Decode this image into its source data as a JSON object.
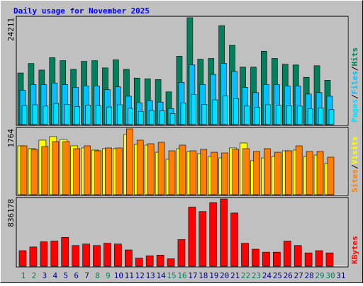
{
  "title": "Daily usage for November 2025",
  "days": [
    1,
    2,
    3,
    4,
    5,
    6,
    7,
    8,
    9,
    10,
    11,
    12,
    13,
    14,
    15,
    16,
    17,
    18,
    19,
    20,
    21,
    22,
    23,
    24,
    25,
    26,
    27,
    28,
    29,
    30,
    31
  ],
  "day_colors": [
    "#00805c",
    "#00805c",
    "#000080",
    "#000080",
    "#000080",
    "#000080",
    "#000080",
    "#00805c",
    "#00805c",
    "#000080",
    "#000080",
    "#000080",
    "#000080",
    "#000080",
    "#00805c",
    "#00805c",
    "#000080",
    "#000080",
    "#000080",
    "#000080",
    "#000080",
    "#00805c",
    "#00805c",
    "#000080",
    "#000080",
    "#000080",
    "#000080",
    "#000080",
    "#00805c",
    "#00805c",
    "#000080"
  ],
  "legend_separator": "/",
  "chart_data": [
    {
      "type": "bar",
      "ylim": [
        0,
        24211
      ],
      "yticks": [
        24211
      ],
      "series": [
        {
          "name": "Hits",
          "color": "#00805c",
          "values": [
            11694,
            13835,
            12353,
            15152,
            14494,
            12517,
            14329,
            14494,
            12847,
            14658,
            12517,
            10541,
            10376,
            10200,
            7412,
            15482,
            24211,
            14823,
            14988,
            22399,
            17952,
            13011,
            13011,
            16635,
            14988,
            13670,
            13505,
            10706,
            13341,
            10047,
            null
          ]
        },
        {
          "name": "Files",
          "color": "#00c0ff",
          "values": [
            7741,
            9059,
            9059,
            9388,
            9059,
            8400,
            8729,
            8729,
            7906,
            8564,
            6423,
            4941,
            5435,
            5106,
            3623,
            9553,
            13505,
            9059,
            11364,
            13835,
            12023,
            8400,
            7247,
            9059,
            9059,
            8729,
            8729,
            6917,
            7247,
            6423,
            null
          ]
        },
        {
          "name": "Pages",
          "color": "#00e0ff",
          "values": [
            4300,
            4500,
            4200,
            4800,
            4600,
            4100,
            4400,
            4300,
            4000,
            4500,
            3700,
            3000,
            3200,
            3100,
            2500,
            4900,
            6800,
            4600,
            5600,
            6500,
            5900,
            4200,
            3900,
            4500,
            4400,
            4300,
            4200,
            3600,
            3800,
            3400,
            null
          ]
        }
      ]
    },
    {
      "type": "bar",
      "ylim": [
        0,
        1764
      ],
      "yticks": [
        1764
      ],
      "series": [
        {
          "name": "Visits",
          "color": "#ffff00",
          "values": [
            1309,
            1233,
            1461,
            1556,
            1480,
            1309,
            1252,
            1195,
            1233,
            1233,
            1612,
            1347,
            1328,
            1138,
            949,
            1233,
            1157,
            1100,
            1024,
            986,
            1252,
            1385,
            911,
            986,
            1024,
            1176,
            1195,
            1024,
            1062,
            835,
            null
          ]
        },
        {
          "name": "Sites",
          "color": "#ff8000",
          "values": [
            1309,
            1214,
            1290,
            1423,
            1423,
            1233,
            1309,
            1176,
            1252,
            1252,
            1764,
            1461,
            1366,
            1404,
            1176,
            1328,
            1176,
            1214,
            1138,
            1119,
            1214,
            1233,
            1157,
            1233,
            1138,
            1176,
            1309,
            1157,
            1157,
            1005,
            null
          ]
        }
      ]
    },
    {
      "type": "bar",
      "ylim": [
        0,
        836178
      ],
      "yticks": [
        836178
      ],
      "series": [
        {
          "name": "KBytes",
          "color": "#ff0000",
          "values": [
            192969,
            238914,
            303237,
            312426,
            358371,
            257292,
            275670,
            257292,
            284859,
            275670,
            202158,
            101079,
            128646,
            137835,
            91890,
            330804,
            735120,
            679986,
            790254,
            836178,
            661608,
            284859,
            211347,
            174591,
            174591,
            312426,
            257292,
            165402,
            192969,
            165402,
            null
          ]
        }
      ]
    }
  ]
}
